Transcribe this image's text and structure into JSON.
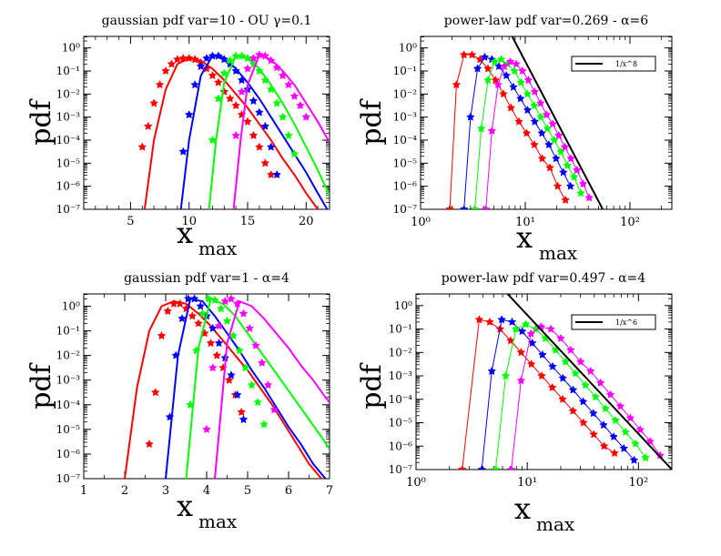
{
  "chart_data": [
    {
      "type": "line",
      "title": "gaussian pdf var=10 - OU  γ=0.1",
      "xlabel": "x",
      "xlabel_sub": "max",
      "ylabel": "pdf",
      "xscale": "linear",
      "yscale": "log",
      "xlim": [
        1,
        22
      ],
      "ylim_exp": [
        -7,
        0.5
      ],
      "xticks": [
        5,
        10,
        15,
        20
      ],
      "xtick_labels": [
        "5",
        "10",
        "15",
        "20"
      ],
      "ytick_exps": [
        0,
        -1,
        -2,
        -3,
        -4,
        -5,
        -6,
        -7
      ],
      "legend": null,
      "series": [
        {
          "name": "red markers",
          "color": "#ff0000",
          "kind": "markers",
          "x": [
            6,
            6.5,
            7,
            7.5,
            8,
            8.5,
            9,
            9.5,
            10,
            10.5,
            11,
            11.5,
            12,
            12.5,
            13,
            13.5,
            14,
            14.5,
            15,
            15.5,
            16,
            16.5,
            17
          ],
          "y": [
            -4.3,
            -3.4,
            -2.4,
            -1.6,
            -1.0,
            -0.7,
            -0.5,
            -0.45,
            -0.45,
            -0.5,
            -0.65,
            -0.9,
            -1.2,
            -1.5,
            -1.9,
            -2.2,
            -2.5,
            -2.9,
            -3.2,
            -3.8,
            -4.3,
            -5.0,
            -5.5
          ]
        },
        {
          "name": "red curve",
          "color": "#ff0000",
          "kind": "line",
          "x": [
            6.2,
            7,
            8,
            9,
            10,
            11,
            12,
            13,
            14,
            15,
            16,
            17,
            18,
            19,
            20,
            21
          ],
          "y": [
            -7.0,
            -4.0,
            -1.8,
            -0.7,
            -0.45,
            -0.55,
            -0.9,
            -1.4,
            -2.0,
            -2.6,
            -3.3,
            -4.0,
            -4.8,
            -5.5,
            -6.3,
            -7.0
          ]
        },
        {
          "name": "blue markers",
          "color": "#0000ff",
          "kind": "markers",
          "x": [
            9.5,
            10,
            10.5,
            11,
            11.5,
            12,
            12.5,
            13,
            13.5,
            14,
            14.5,
            15,
            15.5,
            16,
            16.5,
            17,
            17.5
          ],
          "y": [
            -4.5,
            -2.9,
            -1.6,
            -0.8,
            -0.45,
            -0.35,
            -0.35,
            -0.5,
            -0.7,
            -1.0,
            -1.4,
            -1.8,
            -2.3,
            -2.8,
            -3.4,
            -4.3,
            -5.5
          ]
        },
        {
          "name": "blue curve",
          "color": "#0000ff",
          "kind": "line",
          "x": [
            9.3,
            10,
            11,
            12,
            13,
            14,
            15,
            16,
            17,
            18,
            19,
            20,
            21,
            21.8
          ],
          "y": [
            -7.0,
            -4.0,
            -1.2,
            -0.35,
            -0.4,
            -0.9,
            -1.5,
            -2.2,
            -3.0,
            -3.8,
            -4.6,
            -5.4,
            -6.3,
            -7.0
          ]
        },
        {
          "name": "green markers",
          "color": "#00ff00",
          "kind": "markers",
          "x": [
            12,
            12.5,
            13,
            13.5,
            14,
            14.5,
            15,
            15.5,
            16,
            16.5,
            17,
            17.5,
            18,
            18.5,
            19
          ],
          "y": [
            -4.0,
            -2.2,
            -1.1,
            -0.55,
            -0.35,
            -0.35,
            -0.45,
            -0.7,
            -1.0,
            -1.4,
            -1.8,
            -2.4,
            -3.0,
            -3.8,
            -4.6
          ]
        },
        {
          "name": "green curve",
          "color": "#00ff00",
          "kind": "line",
          "x": [
            11.7,
            12.3,
            13,
            14,
            15,
            16,
            17,
            18,
            19,
            20,
            21,
            22
          ],
          "y": [
            -7.0,
            -4.0,
            -1.5,
            -0.35,
            -0.4,
            -0.9,
            -1.6,
            -2.4,
            -3.3,
            -4.3,
            -5.3,
            -6.4
          ]
        },
        {
          "name": "magenta markers",
          "color": "#ff00ff",
          "kind": "markers",
          "x": [
            14,
            14.5,
            15,
            15.5,
            16,
            16.5,
            17,
            17.5,
            18,
            18.5,
            19,
            19.5,
            20
          ],
          "y": [
            -3.8,
            -1.9,
            -0.9,
            -0.45,
            -0.3,
            -0.35,
            -0.55,
            -0.85,
            -1.2,
            -1.6,
            -2.1,
            -2.5,
            -3.0
          ]
        },
        {
          "name": "magenta curve",
          "color": "#ff00ff",
          "kind": "line",
          "x": [
            13.8,
            14.4,
            15,
            16,
            17,
            18,
            19,
            20,
            21,
            22
          ],
          "y": [
            -7.0,
            -4.0,
            -1.6,
            -0.3,
            -0.5,
            -1.0,
            -1.6,
            -2.4,
            -3.2,
            -4.1
          ]
        }
      ]
    },
    {
      "type": "line",
      "title": "power-law pdf var=0.269 -  α=6",
      "xlabel": "x",
      "xlabel_sub": "max",
      "ylabel": "pdf",
      "xscale": "log",
      "yscale": "log",
      "xlim_exp": [
        0,
        2.4
      ],
      "ylim_exp": [
        -7,
        0.5
      ],
      "xtick_exps": [
        0,
        1,
        2
      ],
      "ytick_exps": [
        0,
        -1,
        -2,
        -3,
        -4,
        -5,
        -6,
        -7
      ],
      "legend": {
        "position": "top-right",
        "entries": [
          "1/x^8"
        ]
      },
      "series": [
        {
          "name": "red",
          "color": "#ff0000",
          "kind": "line-markers",
          "x": [
            1.9,
            2.2,
            2.6,
            3.1,
            3.7,
            4.4,
            5.2,
            6.2,
            7.3,
            8.7,
            10.3,
            12.2,
            14.5,
            17.2,
            20.4,
            24.2
          ],
          "y": [
            -7.0,
            -1.6,
            -0.3,
            -0.3,
            -0.5,
            -0.9,
            -1.4,
            -2.0,
            -2.6,
            -3.2,
            -3.7,
            -4.2,
            -4.8,
            -5.2,
            -6.0,
            -6.6
          ]
        },
        {
          "name": "blue",
          "color": "#0000ff",
          "kind": "line-markers",
          "x": [
            2.6,
            3.0,
            3.5,
            4.1,
            4.8,
            5.6,
            6.6,
            7.7,
            9.0,
            10.5,
            12.3,
            14.4,
            16.8,
            19.7,
            23.1,
            27.0
          ],
          "y": [
            -7.0,
            -3.0,
            -0.9,
            -0.4,
            -0.5,
            -0.8,
            -1.2,
            -1.7,
            -2.2,
            -2.7,
            -3.2,
            -3.7,
            -4.2,
            -4.8,
            -5.4,
            -6.0
          ]
        },
        {
          "name": "green",
          "color": "#00ff00",
          "kind": "line-markers",
          "x": [
            3.3,
            3.8,
            4.4,
            5.1,
            5.9,
            6.8,
            7.9,
            9.1,
            10.5,
            12.2,
            14.1,
            16.3,
            18.9,
            21.9,
            25.3,
            29.3,
            33.9
          ],
          "y": [
            -7.0,
            -3.5,
            -1.4,
            -0.6,
            -0.5,
            -0.7,
            -1.0,
            -1.5,
            -2.0,
            -2.5,
            -3.0,
            -3.5,
            -4.0,
            -4.5,
            -5.1,
            -5.6,
            -6.3
          ]
        },
        {
          "name": "magenta",
          "color": "#ff00ff",
          "kind": "line-markers",
          "x": [
            4.2,
            4.8,
            5.5,
            6.3,
            7.2,
            8.2,
            9.4,
            10.7,
            12.3,
            14.0,
            16.0,
            18.3,
            20.9,
            23.9,
            27.3,
            31.2,
            35.7,
            40.8
          ],
          "y": [
            -7.0,
            -3.6,
            -1.6,
            -0.8,
            -0.6,
            -0.7,
            -1.0,
            -1.4,
            -1.9,
            -2.4,
            -2.9,
            -3.3,
            -3.8,
            -4.3,
            -4.8,
            -5.3,
            -5.9,
            -6.5
          ]
        },
        {
          "name": "1/x^8",
          "color": "#000000",
          "kind": "line",
          "x": [
            7.5,
            55
          ],
          "y": [
            0.5,
            -7.0
          ]
        }
      ]
    },
    {
      "type": "line",
      "title": "gaussian pdf var=1 -  α=4",
      "xlabel": "x",
      "xlabel_sub": "max",
      "ylabel": "pdf",
      "xscale": "linear",
      "yscale": "log",
      "xlim": [
        1,
        7
      ],
      "ylim_exp": [
        -7,
        0.5
      ],
      "xticks": [
        1,
        2,
        3,
        4,
        5,
        6,
        7
      ],
      "xtick_labels": [
        "1",
        "2",
        "3",
        "4",
        "5",
        "6",
        "7"
      ],
      "ytick_exps": [
        0,
        -1,
        -2,
        -3,
        -4,
        -5,
        -6,
        -7
      ],
      "legend": null,
      "series": [
        {
          "name": "red markers",
          "color": "#ff0000",
          "kind": "markers",
          "x": [
            2.6,
            2.75,
            2.9,
            3.05,
            3.2,
            3.35,
            3.5,
            3.65,
            3.8,
            3.95,
            4.1,
            4.25,
            4.4,
            4.55,
            4.7,
            4.85
          ],
          "y": [
            -5.6,
            -3.5,
            -1.2,
            -0.2,
            0.1,
            0.1,
            -0.1,
            -0.4,
            -0.7,
            -1.1,
            -1.5,
            -2.0,
            -2.5,
            -3.0,
            -3.6,
            -4.3
          ]
        },
        {
          "name": "red curve",
          "color": "#ff0000",
          "kind": "line",
          "x": [
            2.0,
            2.3,
            2.6,
            2.9,
            3.2,
            3.5,
            3.8,
            4.1,
            4.4,
            4.7,
            5.0,
            5.3,
            5.6,
            5.9,
            6.2,
            6.5,
            6.8
          ],
          "y": [
            -7.0,
            -3.3,
            -1.0,
            0.0,
            0.2,
            0.1,
            -0.3,
            -0.8,
            -1.4,
            -2.0,
            -2.6,
            -3.3,
            -4.0,
            -4.8,
            -5.6,
            -6.4,
            -7.0
          ]
        },
        {
          "name": "blue markers",
          "color": "#0000ff",
          "kind": "markers",
          "x": [
            3.1,
            3.25,
            3.4,
            3.55,
            3.7,
            3.85,
            4.0,
            4.15,
            4.3,
            4.45,
            4.6,
            4.75,
            4.9
          ],
          "y": [
            -4.5,
            -2.0,
            -0.5,
            0.3,
            0.3,
            0.0,
            -0.4,
            -0.9,
            -1.5,
            -2.1,
            -2.8,
            -3.6,
            -4.6
          ]
        },
        {
          "name": "blue curve",
          "color": "#0000ff",
          "kind": "line",
          "x": [
            3.0,
            3.3,
            3.6,
            3.9,
            4.2,
            4.5,
            4.8,
            5.1,
            5.4,
            5.7,
            6.0,
            6.3,
            6.6,
            6.9
          ],
          "y": [
            -7.0,
            -2.0,
            0.3,
            0.2,
            -0.4,
            -1.1,
            -1.8,
            -2.6,
            -3.3,
            -4.1,
            -4.9,
            -5.6,
            -6.4,
            -7.0
          ]
        },
        {
          "name": "green markers",
          "color": "#00ff00",
          "kind": "markers",
          "x": [
            3.6,
            3.75,
            3.9,
            4.05,
            4.2,
            4.35,
            4.5,
            4.65,
            4.8,
            4.95,
            5.1,
            5.25,
            5.4
          ],
          "y": [
            -4.0,
            -1.8,
            -0.3,
            0.3,
            0.25,
            -0.1,
            -0.6,
            -1.2,
            -1.8,
            -2.5,
            -3.2,
            -3.9,
            -4.8
          ]
        },
        {
          "name": "green curve",
          "color": "#00ff00",
          "kind": "line",
          "x": [
            3.5,
            3.8,
            4.1,
            4.4,
            4.7,
            5.0,
            5.3,
            5.6,
            5.9,
            6.2,
            6.5,
            6.8,
            7.0
          ],
          "y": [
            -7.0,
            -1.7,
            0.3,
            0.1,
            -0.4,
            -1.1,
            -1.8,
            -2.5,
            -3.2,
            -3.9,
            -4.6,
            -5.3,
            -5.8
          ]
        },
        {
          "name": "magenta markers",
          "color": "#ff00ff",
          "kind": "markers",
          "x": [
            4.0,
            4.15,
            4.3,
            4.45,
            4.6,
            4.75,
            4.9,
            5.05,
            5.2,
            5.35,
            5.5,
            5.65
          ],
          "y": [
            -5.0,
            -2.5,
            -0.8,
            0.2,
            0.3,
            0.1,
            -0.3,
            -0.9,
            -1.6,
            -2.3,
            -3.2,
            -4.2
          ]
        },
        {
          "name": "magenta curve",
          "color": "#ff00ff",
          "kind": "line",
          "x": [
            4.2,
            4.5,
            4.8,
            5.1,
            5.4,
            5.7,
            6.0,
            6.3,
            6.6,
            6.9,
            7.0
          ],
          "y": [
            -7.0,
            -1.5,
            0.2,
            0.0,
            -0.5,
            -1.1,
            -1.7,
            -2.4,
            -3.0,
            -3.7,
            -3.9
          ]
        }
      ]
    },
    {
      "type": "line",
      "title": "power-law pdf var=0.497 -  α=4",
      "xlabel": "x",
      "xlabel_sub": "max",
      "ylabel": "pdf",
      "xscale": "log",
      "yscale": "log",
      "xlim_exp": [
        0,
        2.3
      ],
      "ylim_exp": [
        -7,
        0.5
      ],
      "xtick_exps": [
        0,
        1,
        2
      ],
      "ytick_exps": [
        0,
        -1,
        -2,
        -3,
        -4,
        -5,
        -6,
        -7
      ],
      "legend": {
        "position": "top-right",
        "entries": [
          "1/x^6"
        ]
      },
      "series": [
        {
          "name": "red",
          "color": "#ff0000",
          "kind": "line-markers",
          "x": [
            2.6,
            3.7,
            4.6,
            5.7,
            7.1,
            8.8,
            10.9,
            13.5,
            16.8,
            20.8,
            25.8,
            32.0,
            39.6,
            49.1,
            60.9
          ],
          "y": [
            -7.0,
            -0.6,
            -0.7,
            -1.0,
            -1.5,
            -2.0,
            -2.5,
            -3.0,
            -3.5,
            -4.0,
            -4.5,
            -5.0,
            -5.5,
            -6.0,
            -6.3
          ]
        },
        {
          "name": "blue",
          "color": "#0000ff",
          "kind": "line-markers",
          "x": [
            3.9,
            4.8,
            5.9,
            7.3,
            9.0,
            11.1,
            13.7,
            16.9,
            20.9,
            25.8,
            31.8,
            39.3,
            48.5,
            59.9,
            73.9,
            91.2
          ],
          "y": [
            -7.0,
            -2.8,
            -0.6,
            -0.7,
            -1.1,
            -1.6,
            -2.1,
            -2.6,
            -3.1,
            -3.6,
            -4.1,
            -4.6,
            -5.1,
            -5.6,
            -6.1,
            -6.6
          ]
        },
        {
          "name": "green",
          "color": "#00ff00",
          "kind": "line-markers",
          "x": [
            5.2,
            6.4,
            7.9,
            9.7,
            11.9,
            14.6,
            18.0,
            22.1,
            27.2,
            33.4,
            41.1,
            50.6,
            62.2,
            76.5,
            94.1,
            115.7
          ],
          "y": [
            -7.0,
            -3.0,
            -1.0,
            -0.8,
            -1.0,
            -1.4,
            -1.9,
            -2.4,
            -2.9,
            -3.4,
            -3.9,
            -4.4,
            -4.9,
            -5.4,
            -5.9,
            -6.5
          ]
        },
        {
          "name": "magenta",
          "color": "#ff00ff",
          "kind": "line-markers",
          "x": [
            7.2,
            8.8,
            10.8,
            13.3,
            16.3,
            20.0,
            24.6,
            30.2,
            37.1,
            45.6,
            56.0,
            68.8,
            84.5,
            103.8,
            127.5,
            156.6
          ],
          "y": [
            -7.0,
            -3.2,
            -1.2,
            -0.9,
            -1.0,
            -1.4,
            -1.9,
            -2.4,
            -2.8,
            -3.3,
            -3.8,
            -4.3,
            -4.8,
            -5.3,
            -5.8,
            -6.4
          ]
        },
        {
          "name": "1/x^6",
          "color": "#000000",
          "kind": "line",
          "x": [
            5.8,
            200
          ],
          "y": [
            0.8,
            -7.0
          ]
        }
      ]
    }
  ]
}
